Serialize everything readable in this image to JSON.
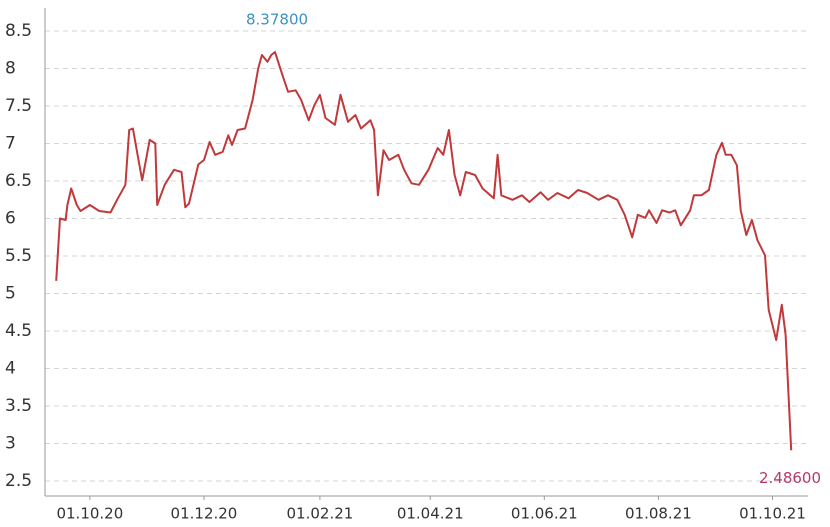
{
  "chart_data": {
    "type": "line",
    "x": [
      "13.09.20",
      "15.09.20",
      "18.09.20",
      "19.09.20",
      "21.09.20",
      "24.09.20",
      "26.09.20",
      "01.10.20",
      "06.10.20",
      "12.10.20",
      "16.10.20",
      "20.10.20",
      "22.10.20",
      "24.10.20",
      "27.10.20",
      "29.10.20",
      "02.11.20",
      "05.11.20",
      "06.11.20",
      "10.11.20",
      "15.11.20",
      "19.11.20",
      "21.11.20",
      "23.11.20",
      "28.11.20",
      "01.12.20",
      "04.12.20",
      "07.12.20",
      "11.12.20",
      "14.12.20",
      "16.12.20",
      "19.12.20",
      "23.12.20",
      "27.12.20",
      "30.12.20",
      "01.01.21",
      "04.01.21",
      "06.01.21",
      "08.01.21",
      "12.01.21",
      "15.01.21",
      "19.01.21",
      "22.01.21",
      "26.01.21",
      "29.01.21",
      "01.02.21",
      "04.02.21",
      "09.02.21",
      "12.02.21",
      "16.02.21",
      "20.02.21",
      "23.02.21",
      "28.02.21",
      "02.03.21",
      "04.03.21",
      "07.03.21",
      "10.03.21",
      "15.03.21",
      "18.03.21",
      "22.03.21",
      "26.03.21",
      "31.03.21",
      "05.04.21",
      "08.04.21",
      "11.04.21",
      "14.04.21",
      "17.04.21",
      "20.04.21",
      "25.04.21",
      "29.04.21",
      "05.05.21",
      "07.05.21",
      "09.05.21",
      "15.05.21",
      "20.05.21",
      "24.05.21",
      "30.05.21",
      "03.06.21",
      "08.06.21",
      "14.06.21",
      "19.06.21",
      "24.06.21",
      "30.06.21",
      "05.07.21",
      "10.07.21",
      "14.07.21",
      "18.07.21",
      "21.07.21",
      "25.07.21",
      "27.07.21",
      "31.07.21",
      "03.08.21",
      "07.08.21",
      "10.08.21",
      "13.08.21",
      "18.08.21",
      "20.08.21",
      "24.08.21",
      "28.08.21",
      "01.09.21",
      "04.09.21",
      "06.09.21",
      "09.09.21",
      "12.09.21",
      "14.09.21",
      "17.09.21",
      "20.09.21",
      "23.09.21",
      "27.09.21",
      "29.09.21",
      "03.10.21",
      "06.10.21",
      "08.10.21",
      "11.10.21"
    ],
    "series": [
      {
        "color": "#c0393b",
        "values": [
          5.17,
          6.0,
          5.98,
          6.18,
          6.4,
          6.18,
          6.1,
          6.18,
          6.1,
          6.08,
          6.27,
          6.45,
          7.18,
          7.2,
          6.78,
          6.51,
          7.05,
          7.0,
          6.18,
          6.45,
          6.65,
          6.62,
          6.15,
          6.2,
          6.72,
          6.78,
          7.02,
          6.85,
          6.89,
          7.11,
          6.98,
          7.18,
          7.2,
          7.58,
          8.0,
          8.18,
          8.09,
          8.18,
          8.22,
          7.91,
          7.69,
          7.71,
          7.58,
          7.31,
          7.51,
          7.65,
          7.34,
          7.25,
          7.65,
          7.29,
          7.38,
          7.2,
          7.31,
          7.18,
          6.31,
          6.91,
          6.78,
          6.85,
          6.65,
          6.47,
          6.45,
          6.65,
          6.94,
          6.85,
          7.18,
          6.58,
          6.31,
          6.62,
          6.58,
          6.4,
          6.27,
          6.85,
          6.31,
          6.25,
          6.31,
          6.22,
          6.35,
          6.25,
          6.34,
          6.27,
          6.38,
          6.34,
          6.25,
          6.31,
          6.25,
          6.05,
          5.75,
          6.05,
          6.01,
          6.11,
          5.94,
          6.11,
          6.08,
          6.11,
          5.91,
          6.11,
          6.31,
          6.31,
          6.38,
          6.85,
          7.01,
          6.85,
          6.85,
          6.71,
          6.11,
          5.78,
          5.98,
          5.71,
          5.51,
          4.78,
          4.38,
          4.85,
          4.45,
          2.91
        ]
      }
    ],
    "xlim": [
      "07.09.20",
      "20.10.21"
    ],
    "xticks": [
      "01.10.20",
      "01.12.20",
      "01.02.21",
      "01.04.21",
      "01.06.21",
      "01.08.21",
      "01.10.21"
    ],
    "ylim": [
      2.3,
      8.8
    ],
    "yticks": [
      2.5,
      3,
      3.5,
      4,
      4.5,
      5,
      5.5,
      6,
      6.5,
      7,
      7.5,
      8,
      8.5
    ],
    "grid": true,
    "annotations": [
      {
        "text": "8.37800",
        "color": "#3a93c0"
      },
      {
        "text": "2.48600",
        "color": "#b23a6e"
      }
    ]
  }
}
